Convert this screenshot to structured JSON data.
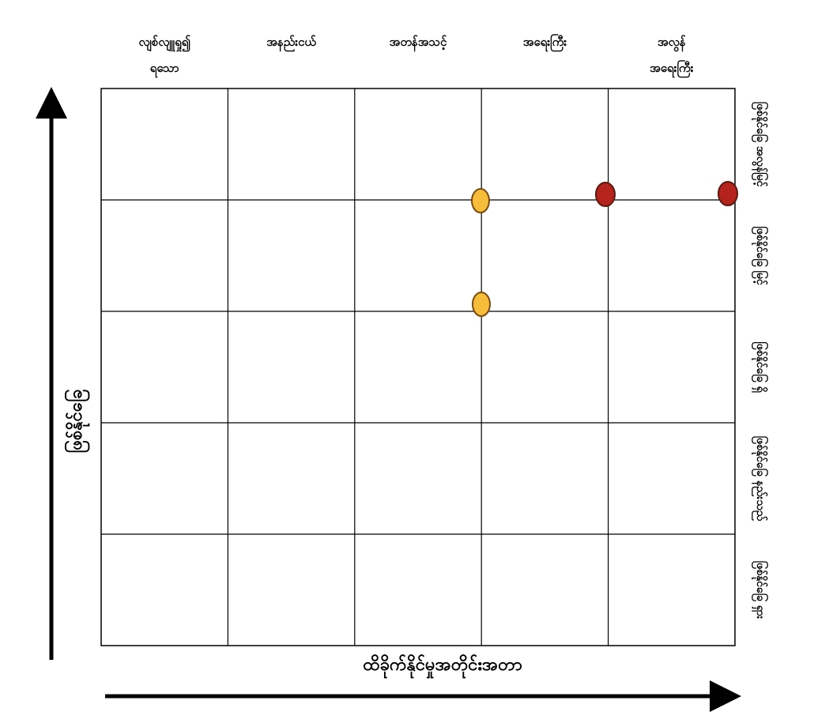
{
  "columns": [
    [
      "လျစ်လျူရှု၍",
      "ရသော"
    ],
    [
      "အနည်းငယ်"
    ],
    [
      "အတန်အသင့်"
    ],
    [
      "အရေးကြီး"
    ],
    [
      "အလွန်",
      "အရေးကြီး"
    ]
  ],
  "rows": [
    "ဖြစ်နိုင်ခြေ အလွန်မြင့်",
    "ဖြစ်နိုင်ခြေ မြင့်",
    "ဖြစ်နိုင်ခြေ ရှိ",
    "ဖြစ်နိုင်ခြေ နည်းသည်",
    "ဖြစ်နိုင်ခြေ ရှား"
  ],
  "y_axis_label": "ဖြစ်နိုင်ခြေ",
  "x_axis_label": "ထိခိုက်နိုင်မှုအတိုင်းအတာ"
}
